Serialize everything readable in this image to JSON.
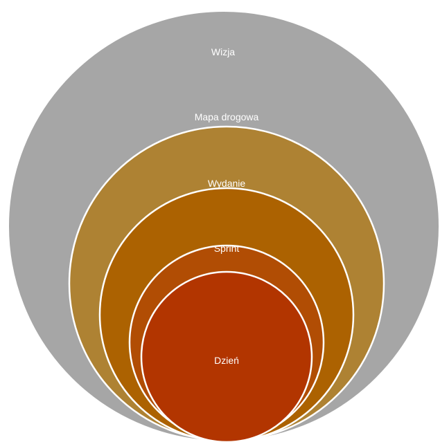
{
  "diagram": {
    "levels": [
      {
        "label": "Wizja",
        "color": "#a6a6a6"
      },
      {
        "label": "Mapa drogowa",
        "color": "#ae8233"
      },
      {
        "label": "Wydanie",
        "color": "#ac6201"
      },
      {
        "label": "Sprint",
        "color": "#b14d04"
      },
      {
        "label": "Dzień",
        "color": "#b23500"
      }
    ],
    "outline_color": "#ffffff"
  }
}
